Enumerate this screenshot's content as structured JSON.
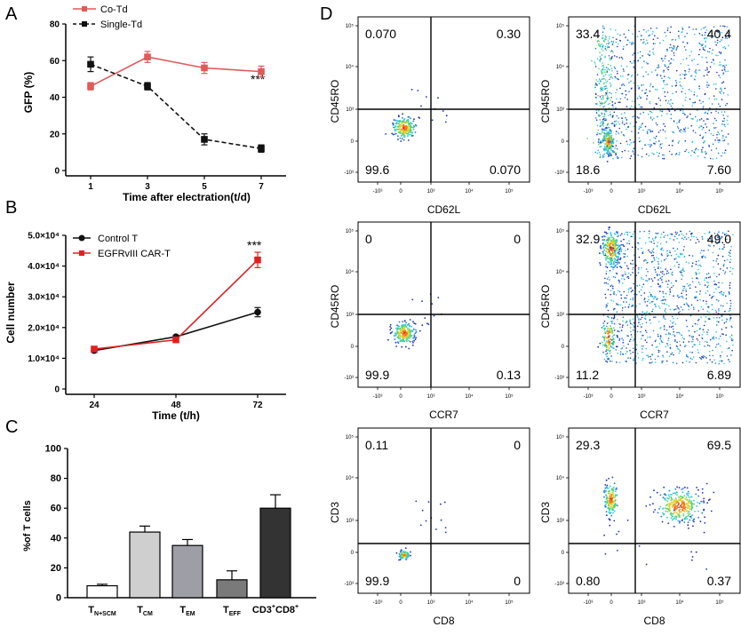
{
  "colors": {
    "red_series": "#e05a5a",
    "red_bright": "#e02020",
    "black": "#111111",
    "bar_fill": [
      "#ffffff",
      "#cfcfcf",
      "#9e9ea6",
      "#7a7a7a",
      "#333333"
    ]
  },
  "chart_data": [
    {
      "id": "A",
      "type": "line",
      "panel_label": "A",
      "title": "",
      "xlabel": "Time after electration(t/d)",
      "ylabel": "GFP (%)",
      "x": [
        1,
        3,
        5,
        7
      ],
      "x_ticks": [
        "1",
        "3",
        "5",
        "7"
      ],
      "ylim": [
        0,
        80
      ],
      "y_ticks": [
        "0",
        "20",
        "40",
        "60",
        "80"
      ],
      "series": [
        {
          "name": "Co-Td",
          "values": [
            46,
            62,
            56,
            54
          ],
          "errors": [
            2,
            3,
            3,
            3
          ],
          "style": "solid",
          "marker": "square",
          "color": "#e05a5a"
        },
        {
          "name": "Single-Td",
          "values": [
            58,
            46,
            17,
            12
          ],
          "errors": [
            4,
            2,
            3,
            2
          ],
          "style": "dashed",
          "marker": "square",
          "color": "#111111"
        }
      ],
      "annotation": "***"
    },
    {
      "id": "B",
      "type": "line",
      "panel_label": "B",
      "title": "",
      "xlabel": "Time  (t/h)",
      "ylabel": "Cell number",
      "x": [
        24,
        48,
        72
      ],
      "x_ticks": [
        "24",
        "48",
        "72"
      ],
      "ylim": [
        0,
        50000
      ],
      "y_ticks": [
        "0",
        "1.0×10⁴",
        "2.0×10⁴",
        "3.0×10⁴",
        "4.0×10⁴",
        "5.0×10⁴"
      ],
      "series": [
        {
          "name": "Control T",
          "values": [
            12500,
            17000,
            25000
          ],
          "errors": [
            600,
            500,
            1500
          ],
          "marker": "circle",
          "color": "#111111"
        },
        {
          "name": "EGFRvIII CAR-T",
          "values": [
            13000,
            16000,
            42000
          ],
          "errors": [
            600,
            700,
            2500
          ],
          "marker": "square",
          "color": "#e02020"
        }
      ],
      "annotation": "***"
    },
    {
      "id": "C",
      "type": "bar",
      "panel_label": "C",
      "title": "",
      "xlabel": "",
      "ylabel": "%of T cells",
      "ylim": [
        0,
        100
      ],
      "y_ticks": [
        "0",
        "20",
        "40",
        "60",
        "80",
        "100"
      ],
      "categories": [
        {
          "main": "T",
          "sub": "N+SCM",
          "sup": ""
        },
        {
          "main": "T",
          "sub": "CM",
          "sup": ""
        },
        {
          "main": "T",
          "sub": "EM",
          "sup": ""
        },
        {
          "main": "T",
          "sub": "EFF",
          "sup": ""
        },
        {
          "main": "CD3",
          "sub": "",
          "sup": "+",
          "main2": "CD8",
          "sup2": "+"
        }
      ],
      "values": [
        8,
        44,
        35,
        12,
        60
      ],
      "errors": [
        1,
        4,
        4,
        6,
        9
      ]
    },
    {
      "id": "D",
      "type": "scatter",
      "panel_label": "D",
      "plots": [
        {
          "xlabel": "CD62L",
          "ylabel": "CD45RO",
          "quadrants": [
            "0.070",
            "0.30",
            "99.6",
            "0.070"
          ],
          "xgate": 488,
          "ygate": 1000
        },
        {
          "xlabel": "CD62L",
          "ylabel": "CD45RO",
          "quadrants": [
            "33.4",
            "40.4",
            "18.6",
            "7.60"
          ],
          "xgate": 1000,
          "ygate": 1000
        },
        {
          "xlabel": "CCR7",
          "ylabel": "CD45RO",
          "quadrants": [
            "0",
            "0",
            "99.9",
            "0.13"
          ],
          "xgate": 488,
          "ygate": 1000
        },
        {
          "xlabel": "CCR7",
          "ylabel": "CD45RO",
          "quadrants": [
            "32.9",
            "49.0",
            "11.2",
            "6.89"
          ],
          "xgate": 1000,
          "ygate": 1000
        },
        {
          "xlabel": "CD8",
          "ylabel": "CD3",
          "quadrants": [
            "0.11",
            "0",
            "99.9",
            "0"
          ],
          "xgate": 488,
          "ygate": 1000
        },
        {
          "xlabel": "CD8",
          "ylabel": "CD3",
          "quadrants": [
            "29.3",
            "69.5",
            "0.80",
            "0.37"
          ],
          "xgate": 1000,
          "ygate": 1000
        }
      ],
      "x_ticks": [
        "-10³",
        "0",
        "10³",
        "10⁴",
        "10⁵"
      ],
      "y_ticks": [
        "10⁵",
        "10⁴",
        "10³",
        "0",
        "-10³"
      ]
    }
  ]
}
